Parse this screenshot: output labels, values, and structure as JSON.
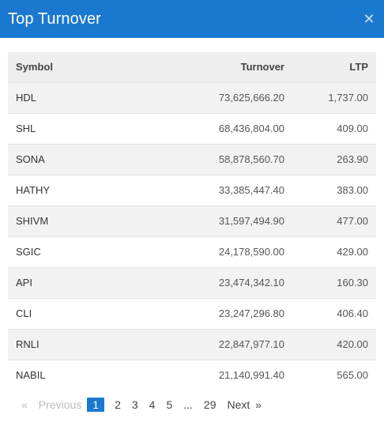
{
  "header": {
    "title": "Top Turnover",
    "close_icon": "close-icon"
  },
  "table": {
    "columns": {
      "symbol": "Symbol",
      "turnover": "Turnover",
      "ltp": "LTP"
    },
    "rows": [
      {
        "symbol": "HDL",
        "turnover": "73,625,666.20",
        "ltp": "1,737.00"
      },
      {
        "symbol": "SHL",
        "turnover": "68,436,804.00",
        "ltp": "409.00"
      },
      {
        "symbol": "SONA",
        "turnover": "58,878,560.70",
        "ltp": "263.90"
      },
      {
        "symbol": "HATHY",
        "turnover": "33,385,447.40",
        "ltp": "383.00"
      },
      {
        "symbol": "SHIVM",
        "turnover": "31,597,494.90",
        "ltp": "477.00"
      },
      {
        "symbol": "SGIC",
        "turnover": "24,178,590.00",
        "ltp": "429.00"
      },
      {
        "symbol": "API",
        "turnover": "23,474,342.10",
        "ltp": "160.30"
      },
      {
        "symbol": "CLI",
        "turnover": "23,247,296.80",
        "ltp": "406.40"
      },
      {
        "symbol": "RNLI",
        "turnover": "22,847,977.10",
        "ltp": "420.00"
      },
      {
        "symbol": "NABIL",
        "turnover": "21,140,991.40",
        "ltp": "565.00"
      }
    ]
  },
  "pagination": {
    "prev_arrow": "«",
    "prev_label": "Previous",
    "pages": [
      "1",
      "2",
      "3",
      "4",
      "5"
    ],
    "ellipsis": "...",
    "last_page": "29",
    "next_label": "Next",
    "next_arrow": "»"
  },
  "colors": {
    "accent": "#1a79cf",
    "header_text": "#ffffff"
  }
}
